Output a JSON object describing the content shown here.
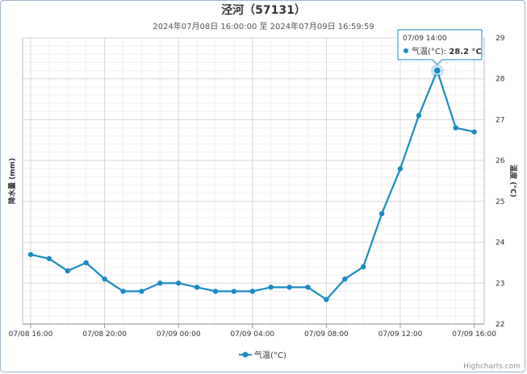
{
  "title": "泾河（57131）",
  "subtitle": "2024年07月08日 16:00:00 至 2024年07月09日 16:59:59",
  "credit": "Highcharts.com",
  "chart_data": {
    "type": "line",
    "x": [
      "07/08 16:00",
      "07/08 17:00",
      "07/08 18:00",
      "07/08 19:00",
      "07/08 20:00",
      "07/08 21:00",
      "07/08 22:00",
      "07/08 23:00",
      "07/09 00:00",
      "07/09 01:00",
      "07/09 02:00",
      "07/09 03:00",
      "07/09 04:00",
      "07/09 05:00",
      "07/09 06:00",
      "07/09 07:00",
      "07/09 08:00",
      "07/09 09:00",
      "07/09 10:00",
      "07/09 11:00",
      "07/09 12:00",
      "07/09 13:00",
      "07/09 14:00",
      "07/09 15:00",
      "07/09 16:00"
    ],
    "x_tick_labels": [
      "07/08 16:00",
      "07/08 20:00",
      "07/09 00:00",
      "07/09 04:00",
      "07/09 08:00",
      "07/09 12:00",
      "07/09 16:00"
    ],
    "series": [
      {
        "name": "气温(°C)",
        "color": "#1a8bc4",
        "values": [
          23.7,
          23.6,
          23.3,
          23.5,
          23.1,
          22.8,
          22.8,
          23.0,
          23.0,
          22.9,
          22.8,
          22.8,
          22.8,
          22.9,
          22.9,
          22.9,
          22.6,
          23.1,
          23.4,
          24.7,
          25.8,
          27.1,
          28.2,
          26.8,
          26.7
        ]
      }
    ],
    "ylabel_left": "降水量 (mm)",
    "ylabel_right": "温度 (°C)",
    "ylim_right": [
      22,
      29
    ],
    "y_ticks_right": [
      22,
      23,
      24,
      25,
      26,
      27,
      28,
      29
    ],
    "grid": true,
    "legend_placement": "bottom-center",
    "tooltip": {
      "x": "07/09 14:00",
      "series": "气温(°C)",
      "value_text": "28.2 °C",
      "point_index": 22
    }
  }
}
